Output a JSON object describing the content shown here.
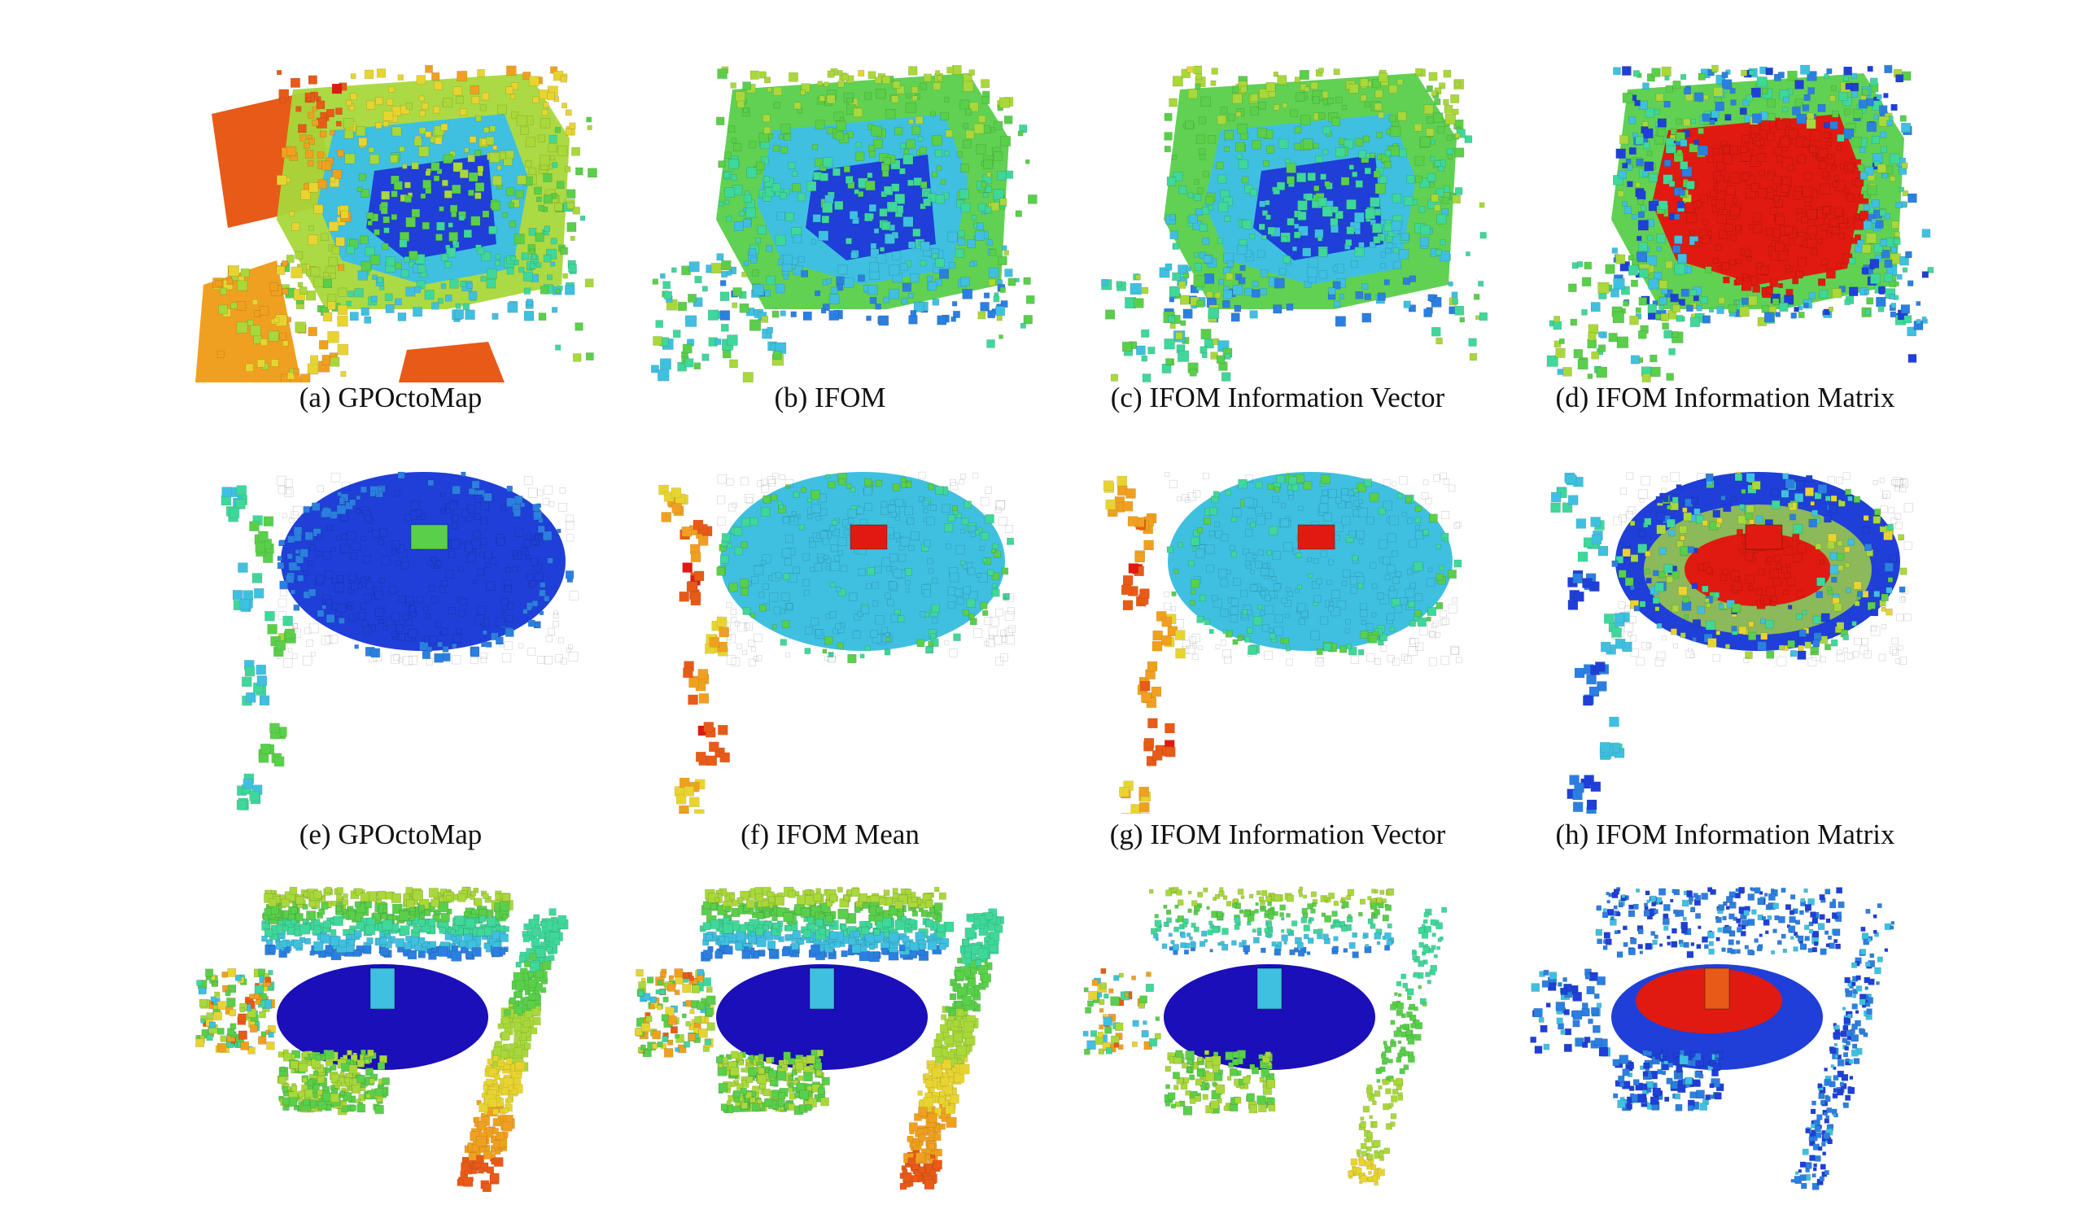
{
  "palette": {
    "jet": [
      "#1a0fb8",
      "#1f3fd8",
      "#2b7fe0",
      "#3fc0e0",
      "#3fd79a",
      "#59cf4a",
      "#a8d83a",
      "#e8d430",
      "#f0a020",
      "#e85a18",
      "#e01a10"
    ],
    "background": "#ffffff"
  },
  "rows": [
    {
      "panels": [
        {
          "caption": "(a) GPOctoMap",
          "scene": "room-octomap"
        },
        {
          "caption": "(b) IFOM",
          "scene": "room-ifom"
        },
        {
          "caption": "(c) IFOM Information Vector",
          "scene": "room-ifom-vector"
        },
        {
          "caption": "(d) IFOM Information Matrix",
          "scene": "room-ifom-matrix"
        }
      ]
    },
    {
      "panels": [
        {
          "caption": "(e) GPOctoMap",
          "scene": "ground-octomap"
        },
        {
          "caption": "(f) IFOM Mean",
          "scene": "ground-ifom-mean"
        },
        {
          "caption": "(g) IFOM Information Vector",
          "scene": "ground-ifom-vector"
        },
        {
          "caption": "(h) IFOM Information Matrix",
          "scene": "ground-ifom-matrix"
        }
      ]
    },
    {
      "panels": [
        {
          "caption": "",
          "scene": "corner-octomap"
        },
        {
          "caption": "",
          "scene": "corner-ifom"
        },
        {
          "caption": "",
          "scene": "corner-ifom-vector"
        },
        {
          "caption": "",
          "scene": "corner-ifom-matrix"
        }
      ]
    }
  ]
}
